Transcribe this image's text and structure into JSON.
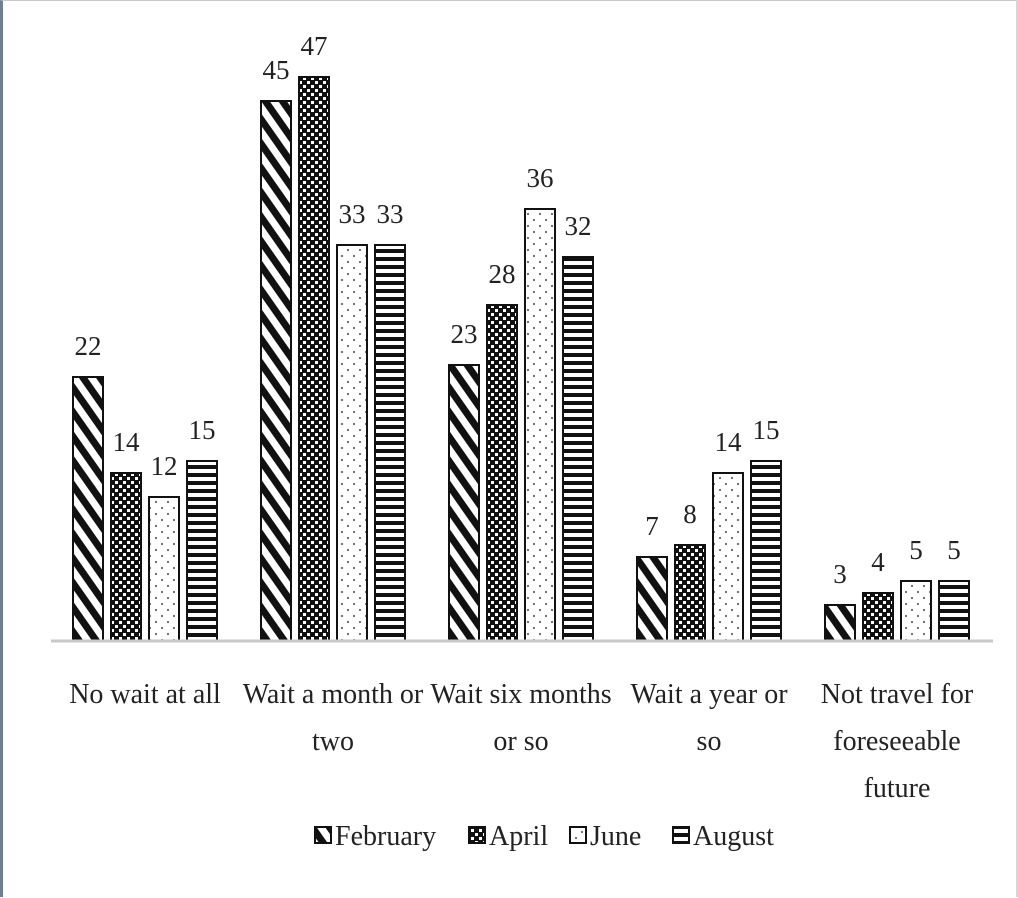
{
  "chart_data": {
    "type": "bar",
    "categories": [
      [
        "No wait at all"
      ],
      [
        "Wait a month or",
        "two"
      ],
      [
        "Wait six months",
        "or so"
      ],
      [
        "Wait a year or",
        "so"
      ],
      [
        "Not travel for",
        "foreseeable",
        "future"
      ]
    ],
    "series": [
      {
        "name": "February",
        "values": [
          22,
          45,
          23,
          7,
          3
        ],
        "pattern": "diagonal-hatch"
      },
      {
        "name": "April",
        "values": [
          14,
          47,
          28,
          8,
          4
        ],
        "pattern": "dark-checker"
      },
      {
        "name": "June",
        "values": [
          12,
          33,
          36,
          14,
          5
        ],
        "pattern": "sparse-dots"
      },
      {
        "name": "August",
        "values": [
          15,
          33,
          32,
          15,
          5
        ],
        "pattern": "horizontal-stripes"
      }
    ],
    "ylim": [
      0,
      50
    ],
    "grid": false,
    "legend_position": "bottom",
    "colors": {
      "ink": "#111111",
      "axis": "#c8c8c8",
      "text": "#222222",
      "border": "#6f7f95"
    }
  }
}
